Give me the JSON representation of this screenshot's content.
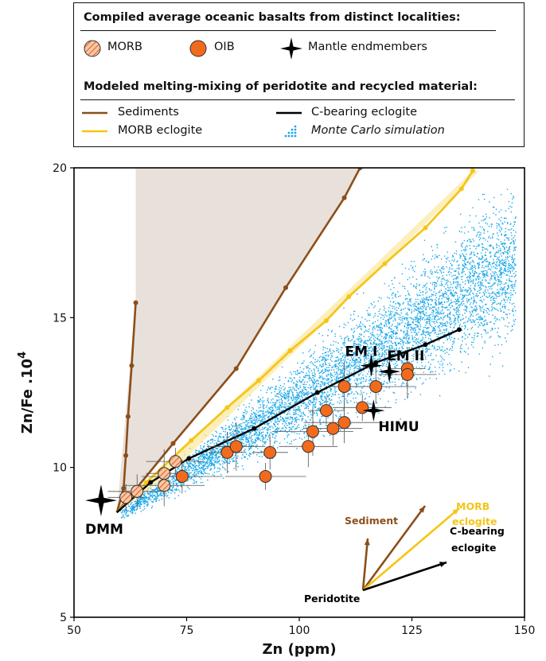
{
  "legend": {
    "heading1": "Compiled average oceanic basalts from distinct localities:",
    "morb": "MORB",
    "oib": "OIB",
    "mantle": "Mantle endmembers",
    "heading2": "Modeled melting-mixing of peridotite and recycled material:",
    "sediments": "Sediments",
    "morb_eclogite": "MORB eclogite",
    "c_eclogite": "C-bearing eclogite",
    "monte_carlo": "Monte Carlo simulation"
  },
  "colors": {
    "sediment": "#8B4F1A",
    "morb_eclogite": "#F5C518",
    "c_eclogite": "#000000",
    "monte_carlo": "#1AA7E8",
    "oib": "#F26B1D",
    "morb_fill": "#F7C7A8",
    "morb_hatch": "#E0621C",
    "shading": "#E8E0DA"
  },
  "chart_data": {
    "type": "scatter",
    "xlabel": "Zn (ppm)",
    "ylabel": "Zn/Fe .10",
    "ylabel_sup": "4",
    "xlim": [
      50,
      150
    ],
    "ylim": [
      5,
      20
    ],
    "xticks": [
      "50",
      "75",
      "100",
      "125",
      "150"
    ],
    "yticks": [
      "5",
      "10",
      "15",
      "20"
    ],
    "series": [
      {
        "name": "Sediments",
        "style": "line-markers",
        "color": "#8B4F1A",
        "points": [
          [
            59.5,
            8.5
          ],
          [
            61,
            9.3
          ],
          [
            61.5,
            10.4
          ],
          [
            62,
            11.7
          ],
          [
            62.8,
            13.4
          ],
          [
            63.7,
            15.5
          ]
        ],
        "points2": [
          [
            59.5,
            8.5
          ],
          [
            72,
            10.8
          ],
          [
            86,
            13.3
          ],
          [
            97,
            16
          ],
          [
            110,
            19
          ],
          [
            113.5,
            20
          ]
        ]
      },
      {
        "name": "MORB eclogite",
        "style": "line-markers",
        "color": "#F5C518",
        "points": [
          [
            59.5,
            8.5
          ],
          [
            66,
            9.5
          ],
          [
            76,
            10.9
          ],
          [
            84,
            12
          ],
          [
            91,
            12.9
          ],
          [
            98,
            13.9
          ],
          [
            106,
            14.9
          ],
          [
            111,
            15.7
          ],
          [
            119,
            16.8
          ],
          [
            128,
            18
          ],
          [
            136,
            19.3
          ],
          [
            138.5,
            19.9
          ]
        ]
      },
      {
        "name": "C-bearing eclogite",
        "style": "line-markers",
        "color": "#000000",
        "points": [
          [
            59.5,
            8.5
          ],
          [
            67,
            9.5
          ],
          [
            75.5,
            10.3
          ],
          [
            90,
            11.3
          ],
          [
            104,
            12.5
          ],
          [
            117,
            13.5
          ],
          [
            128,
            14.1
          ],
          [
            135.5,
            14.6
          ]
        ]
      },
      {
        "name": "MORB",
        "style": "hatched-circles",
        "points": [
          [
            61.5,
            9
          ],
          [
            64,
            9.2
          ],
          [
            70,
            9.4
          ],
          [
            70,
            9.8
          ],
          [
            72.5,
            10.2
          ]
        ]
      },
      {
        "name": "OIB",
        "style": "circles",
        "points": [
          [
            74,
            9.7
          ],
          [
            84,
            10.5
          ],
          [
            86,
            10.7
          ],
          [
            92.5,
            9.7
          ],
          [
            93.5,
            10.5
          ],
          [
            102,
            10.7
          ],
          [
            103,
            11.2
          ],
          [
            106,
            11.9
          ],
          [
            107.5,
            11.3
          ],
          [
            110,
            11.5
          ],
          [
            110,
            12.7
          ],
          [
            114,
            12
          ],
          [
            117,
            12.7
          ],
          [
            124,
            13.3
          ],
          [
            124,
            13.1
          ]
        ]
      }
    ],
    "endmembers": [
      {
        "label": "DMM",
        "x": 56,
        "y": 8.9
      },
      {
        "label": "EM I",
        "x": 116,
        "y": 13.4
      },
      {
        "label": "EM II",
        "x": 120,
        "y": 13.2
      },
      {
        "label": "HIMU",
        "x": 116.5,
        "y": 11.9
      }
    ],
    "vector_labels": {
      "origin": "Peridotite",
      "sediment": "Sediment",
      "morb": "MORB",
      "morb2": "eclogite",
      "carbon": "C-bearing",
      "carbon2": "eclogite"
    }
  }
}
